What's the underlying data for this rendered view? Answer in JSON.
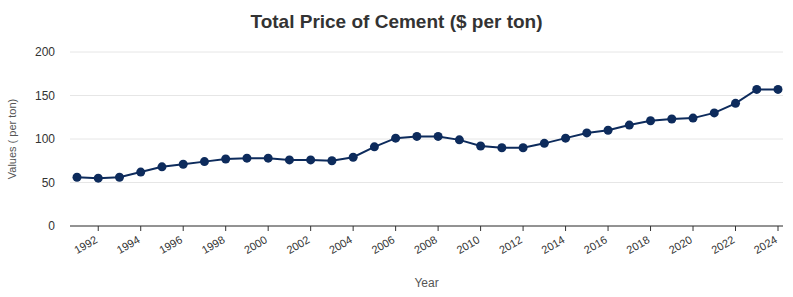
{
  "chart_data": {
    "type": "line",
    "title": "Total Price of Cement ($ per ton)",
    "x_label": "Year",
    "y_label": "Values ( per ton)",
    "x": [
      1991,
      1992,
      1993,
      1994,
      1995,
      1996,
      1997,
      1998,
      1999,
      2000,
      2001,
      2002,
      2003,
      2004,
      2005,
      2006,
      2007,
      2008,
      2009,
      2010,
      2011,
      2012,
      2013,
      2014,
      2015,
      2016,
      2017,
      2018,
      2019,
      2020,
      2021,
      2022,
      2023,
      2024
    ],
    "values": [
      56,
      55,
      56,
      62,
      68,
      71,
      74,
      77,
      78,
      78,
      76,
      76,
      75,
      79,
      91,
      101,
      103,
      103,
      99,
      92,
      90,
      90,
      95,
      101,
      107,
      110,
      116,
      121,
      123,
      124,
      130,
      141,
      157,
      157
    ],
    "color": "#0d2b5c",
    "marker": "circle",
    "xlim": [
      1991,
      2024
    ],
    "xticks": [
      1992,
      1994,
      1996,
      1998,
      2000,
      2002,
      2004,
      2006,
      2008,
      2010,
      2012,
      2014,
      2016,
      2018,
      2020,
      2022,
      2024
    ],
    "ylim": [
      0,
      200
    ],
    "yticks": [
      0,
      50,
      100,
      150,
      200
    ],
    "grid": true
  }
}
